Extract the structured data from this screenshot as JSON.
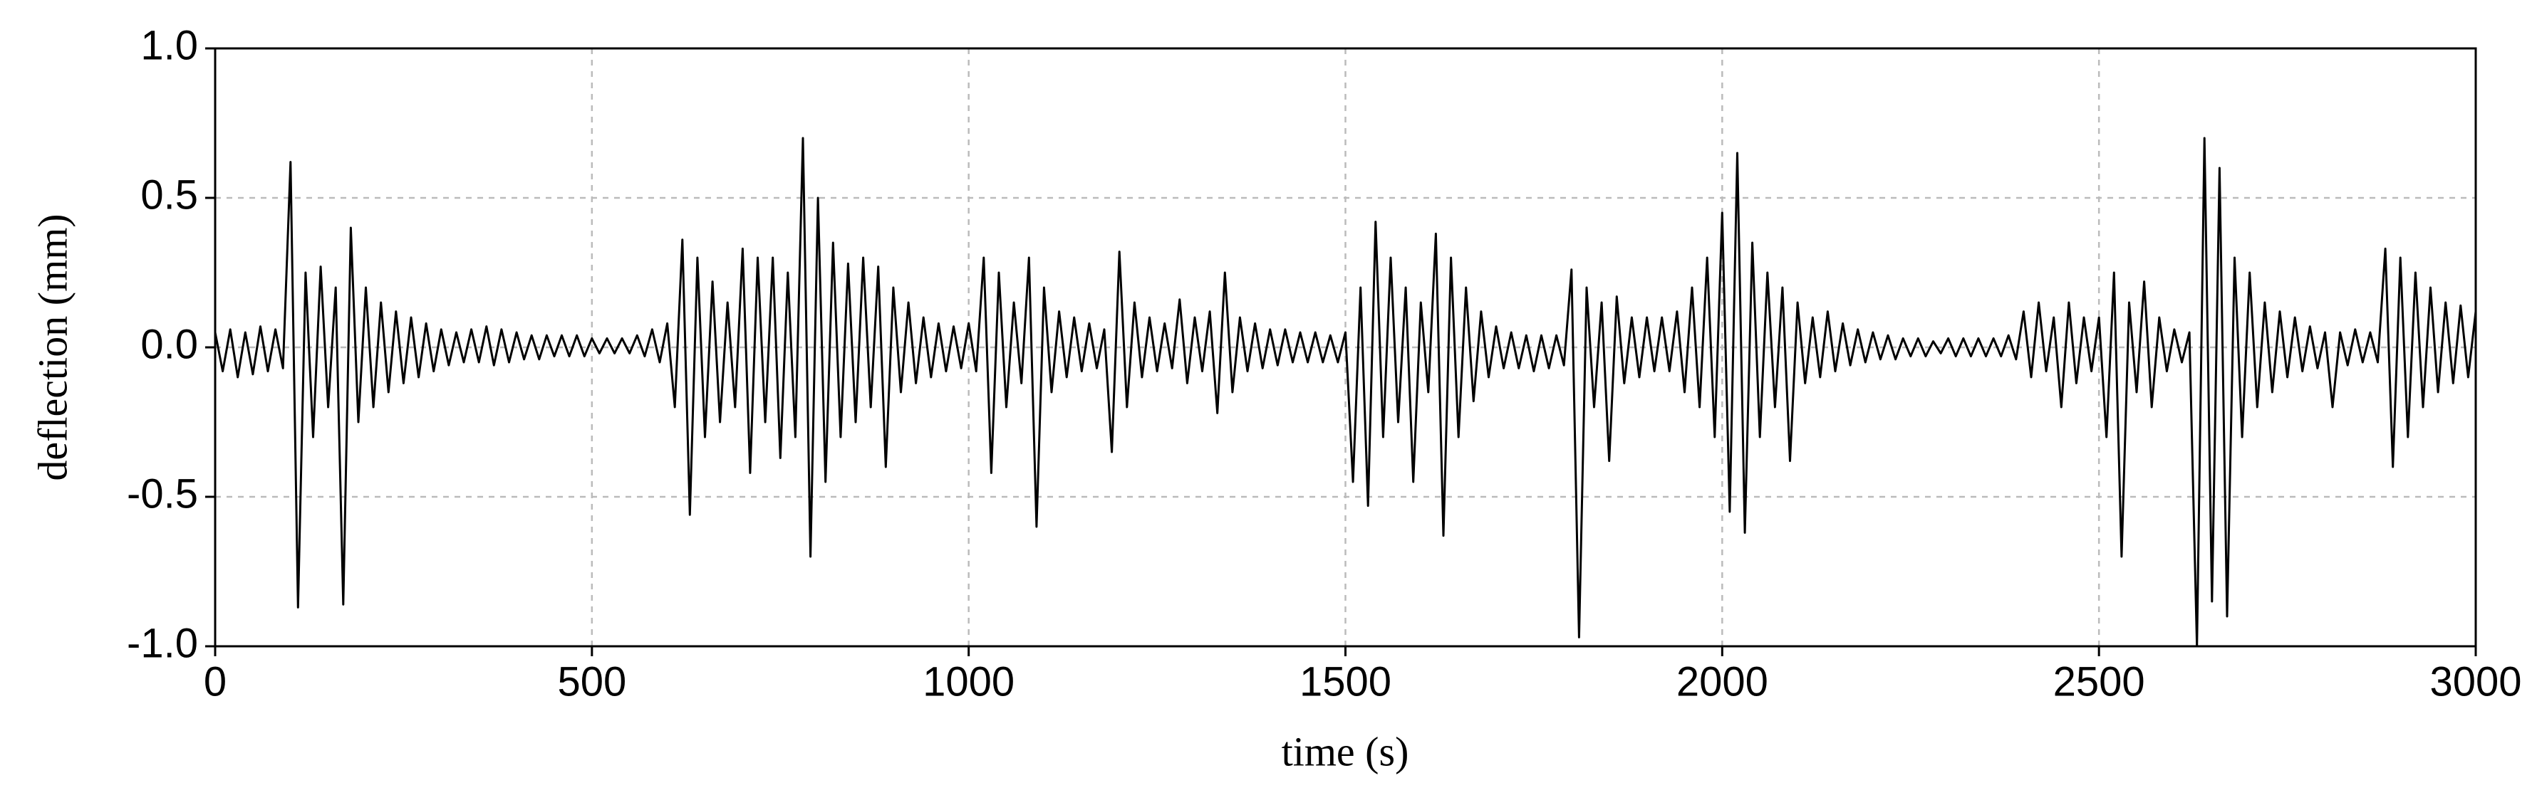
{
  "chart_data": {
    "type": "line",
    "x_label": "time (s)",
    "y_label": "deflection (mm)",
    "xlim": [
      0,
      3000
    ],
    "xticks": [
      0,
      500,
      1000,
      1500,
      2000,
      2500,
      3000
    ],
    "ylim": [
      -1.0,
      1.0
    ],
    "yticks": [
      {
        "value": -1.0,
        "label": "-1.0"
      },
      {
        "value": -0.5,
        "label": "-0.5"
      },
      {
        "value": 0.0,
        "label": "0.0"
      },
      {
        "value": 0.5,
        "label": "0.5"
      },
      {
        "value": 1.0,
        "label": "1.0"
      }
    ],
    "grid": true,
    "x": [
      0,
      10,
      20,
      30,
      40,
      50,
      60,
      70,
      80,
      90,
      100,
      110,
      120,
      130,
      140,
      150,
      160,
      170,
      180,
      190,
      200,
      210,
      220,
      230,
      240,
      250,
      260,
      270,
      280,
      290,
      300,
      310,
      320,
      330,
      340,
      350,
      360,
      370,
      380,
      390,
      400,
      410,
      420,
      430,
      440,
      450,
      460,
      470,
      480,
      490,
      500,
      510,
      520,
      530,
      540,
      550,
      560,
      570,
      580,
      590,
      600,
      610,
      620,
      630,
      640,
      650,
      660,
      670,
      680,
      690,
      700,
      710,
      720,
      730,
      740,
      750,
      760,
      770,
      780,
      790,
      800,
      810,
      820,
      830,
      840,
      850,
      860,
      870,
      880,
      890,
      900,
      910,
      920,
      930,
      940,
      950,
      960,
      970,
      980,
      990,
      1000,
      1010,
      1020,
      1030,
      1040,
      1050,
      1060,
      1070,
      1080,
      1090,
      1100,
      1110,
      1120,
      1130,
      1140,
      1150,
      1160,
      1170,
      1180,
      1190,
      1200,
      1210,
      1220,
      1230,
      1240,
      1250,
      1260,
      1270,
      1280,
      1290,
      1300,
      1310,
      1320,
      1330,
      1340,
      1350,
      1360,
      1370,
      1380,
      1390,
      1400,
      1410,
      1420,
      1430,
      1440,
      1450,
      1460,
      1470,
      1480,
      1490,
      1500,
      1510,
      1520,
      1530,
      1540,
      1550,
      1560,
      1570,
      1580,
      1590,
      1600,
      1610,
      1620,
      1630,
      1640,
      1650,
      1660,
      1670,
      1680,
      1690,
      1700,
      1710,
      1720,
      1730,
      1740,
      1750,
      1760,
      1770,
      1780,
      1790,
      1800,
      1810,
      1820,
      1830,
      1840,
      1850,
      1860,
      1870,
      1880,
      1890,
      1900,
      1910,
      1920,
      1930,
      1940,
      1950,
      1960,
      1970,
      1980,
      1990,
      2000,
      2010,
      2020,
      2030,
      2040,
      2050,
      2060,
      2070,
      2080,
      2090,
      2100,
      2110,
      2120,
      2130,
      2140,
      2150,
      2160,
      2170,
      2180,
      2190,
      2200,
      2210,
      2220,
      2230,
      2240,
      2250,
      2260,
      2270,
      2280,
      2290,
      2300,
      2310,
      2320,
      2330,
      2340,
      2350,
      2360,
      2370,
      2380,
      2390,
      2400,
      2410,
      2420,
      2430,
      2440,
      2450,
      2460,
      2470,
      2480,
      2490,
      2500,
      2510,
      2520,
      2530,
      2540,
      2550,
      2560,
      2570,
      2580,
      2590,
      2600,
      2610,
      2620,
      2630,
      2640,
      2650,
      2660,
      2670,
      2680,
      2690,
      2700,
      2710,
      2720,
      2730,
      2740,
      2750,
      2760,
      2770,
      2780,
      2790,
      2800,
      2810,
      2820,
      2830,
      2840,
      2850,
      2860,
      2870,
      2880,
      2890,
      2900,
      2910,
      2920,
      2930,
      2940,
      2950,
      2960,
      2970,
      2980,
      2990,
      3000
    ],
    "series": [
      {
        "color": "#000000",
        "values": [
          0.05,
          -0.08,
          0.06,
          -0.1,
          0.05,
          -0.09,
          0.07,
          -0.08,
          0.06,
          -0.07,
          0.62,
          -0.87,
          0.25,
          -0.3,
          0.27,
          -0.2,
          0.2,
          -0.86,
          0.4,
          -0.25,
          0.2,
          -0.2,
          0.15,
          -0.15,
          0.12,
          -0.12,
          0.1,
          -0.1,
          0.08,
          -0.08,
          0.06,
          -0.06,
          0.05,
          -0.05,
          0.06,
          -0.05,
          0.07,
          -0.06,
          0.06,
          -0.05,
          0.05,
          -0.04,
          0.04,
          -0.04,
          0.04,
          -0.03,
          0.04,
          -0.03,
          0.04,
          -0.03,
          0.03,
          -0.02,
          0.03,
          -0.02,
          0.03,
          -0.02,
          0.04,
          -0.03,
          0.06,
          -0.05,
          0.08,
          -0.2,
          0.36,
          -0.56,
          0.3,
          -0.3,
          0.22,
          -0.25,
          0.15,
          -0.2,
          0.33,
          -0.42,
          0.3,
          -0.25,
          0.3,
          -0.37,
          0.25,
          -0.3,
          0.7,
          -0.7,
          0.5,
          -0.45,
          0.35,
          -0.3,
          0.28,
          -0.25,
          0.3,
          -0.2,
          0.27,
          -0.4,
          0.2,
          -0.15,
          0.15,
          -0.12,
          0.1,
          -0.1,
          0.08,
          -0.08,
          0.07,
          -0.07,
          0.08,
          -0.08,
          0.3,
          -0.42,
          0.25,
          -0.2,
          0.15,
          -0.12,
          0.3,
          -0.6,
          0.2,
          -0.15,
          0.12,
          -0.1,
          0.1,
          -0.08,
          0.08,
          -0.07,
          0.06,
          -0.35,
          0.32,
          -0.2,
          0.15,
          -0.1,
          0.1,
          -0.08,
          0.08,
          -0.07,
          0.16,
          -0.12,
          0.1,
          -0.08,
          0.12,
          -0.22,
          0.25,
          -0.15,
          0.1,
          -0.08,
          0.08,
          -0.07,
          0.06,
          -0.06,
          0.06,
          -0.05,
          0.05,
          -0.05,
          0.05,
          -0.05,
          0.04,
          -0.05,
          0.05,
          -0.45,
          0.2,
          -0.53,
          0.42,
          -0.3,
          0.3,
          -0.25,
          0.2,
          -0.45,
          0.15,
          -0.15,
          0.38,
          -0.63,
          0.3,
          -0.3,
          0.2,
          -0.18,
          0.12,
          -0.1,
          0.07,
          -0.07,
          0.05,
          -0.07,
          0.04,
          -0.08,
          0.04,
          -0.07,
          0.04,
          -0.06,
          0.26,
          -0.97,
          0.2,
          -0.2,
          0.15,
          -0.38,
          0.17,
          -0.12,
          0.1,
          -0.1,
          0.1,
          -0.08,
          0.1,
          -0.08,
          0.12,
          -0.15,
          0.2,
          -0.2,
          0.3,
          -0.3,
          0.45,
          -0.55,
          0.65,
          -0.62,
          0.35,
          -0.3,
          0.25,
          -0.2,
          0.2,
          -0.38,
          0.15,
          -0.12,
          0.1,
          -0.1,
          0.12,
          -0.08,
          0.08,
          -0.06,
          0.06,
          -0.05,
          0.05,
          -0.04,
          0.04,
          -0.04,
          0.03,
          -0.03,
          0.03,
          -0.03,
          0.02,
          -0.02,
          0.03,
          -0.03,
          0.03,
          -0.03,
          0.03,
          -0.03,
          0.03,
          -0.03,
          0.04,
          -0.04,
          0.12,
          -0.1,
          0.15,
          -0.08,
          0.1,
          -0.2,
          0.15,
          -0.12,
          0.1,
          -0.08,
          0.1,
          -0.3,
          0.25,
          -0.7,
          0.15,
          -0.15,
          0.22,
          -0.2,
          0.1,
          -0.08,
          0.06,
          -0.05,
          0.05,
          -1.0,
          0.7,
          -0.85,
          0.6,
          -0.9,
          0.3,
          -0.3,
          0.25,
          -0.2,
          0.15,
          -0.15,
          0.12,
          -0.1,
          0.1,
          -0.08,
          0.07,
          -0.07,
          0.05,
          -0.2,
          0.05,
          -0.06,
          0.06,
          -0.05,
          0.05,
          -0.05,
          0.33,
          -0.4,
          0.3,
          -0.3,
          0.25,
          -0.2,
          0.2,
          -0.15,
          0.15,
          -0.12,
          0.14,
          -0.1,
          0.12
        ]
      }
    ]
  }
}
